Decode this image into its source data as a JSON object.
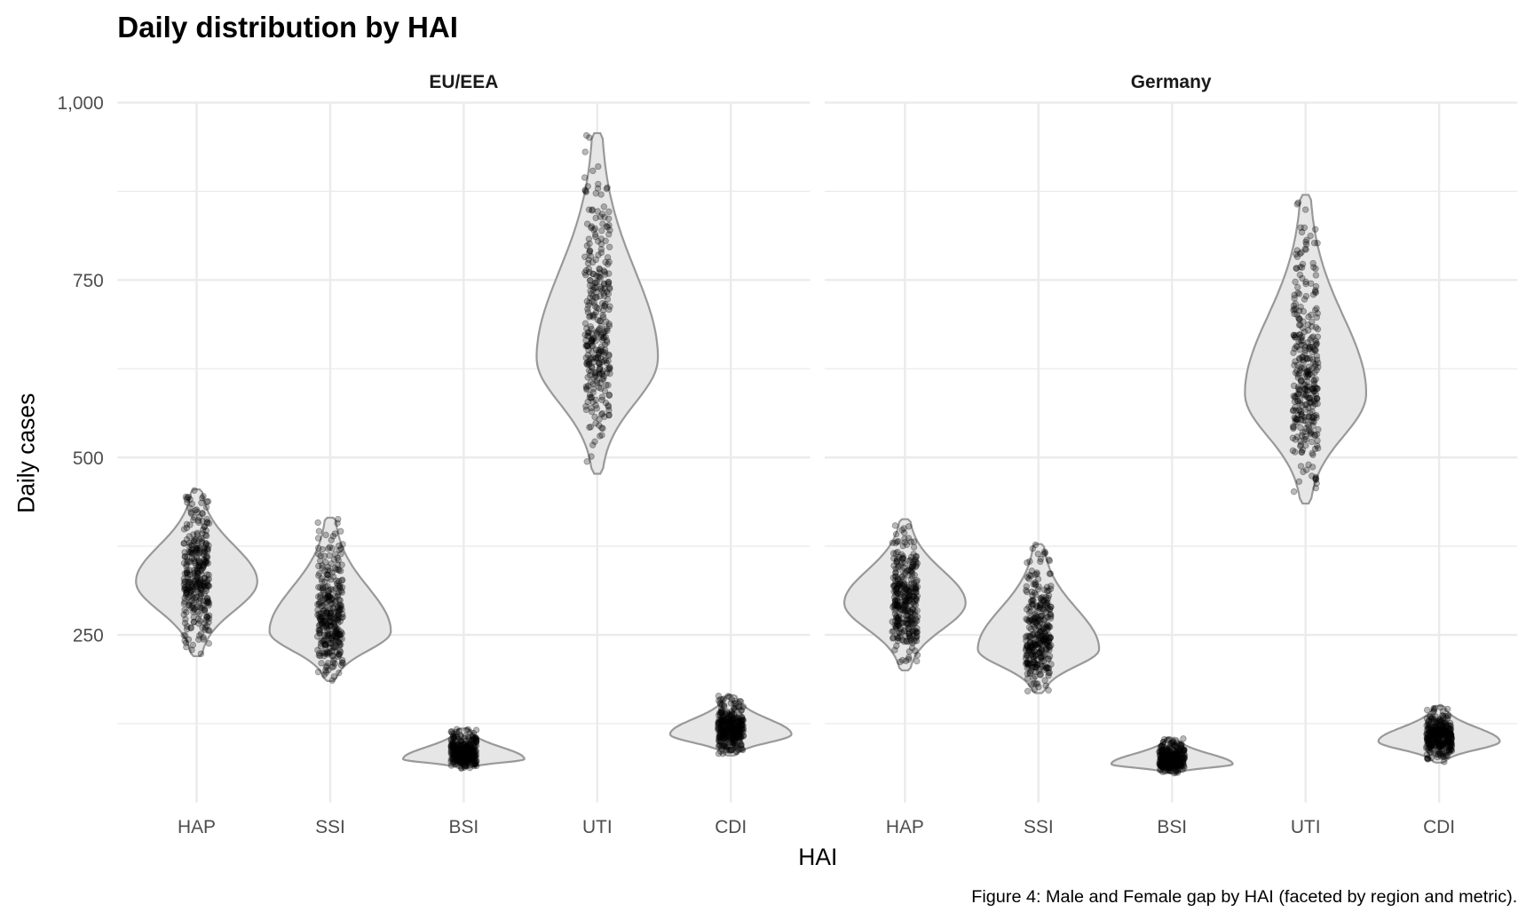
{
  "chart_data": {
    "type": "violin",
    "title": "Daily distribution by HAI",
    "xlabel": "HAI",
    "ylabel": "Daily cases",
    "caption": "Figure 4: Male and Female gap by HAI (faceted by region and metric).",
    "ylim": [
      0,
      1000
    ],
    "yticks": [
      250,
      500,
      750,
      1000
    ],
    "ytick_labels": [
      "250",
      "500",
      "750",
      "1,000"
    ],
    "categories": [
      "HAP",
      "SSI",
      "BSI",
      "UTI",
      "CDI"
    ],
    "grid": true,
    "colors": {
      "violin_fill": "#e6e6e6",
      "violin_stroke": "#999999",
      "points": "#000000",
      "grid": "#ebebeb"
    },
    "facets": [
      {
        "name": "EU/EEA",
        "series": [
          {
            "category": "HAP",
            "min": 220,
            "max": 455,
            "mode": 325
          },
          {
            "category": "SSI",
            "min": 185,
            "max": 415,
            "mode": 255
          },
          {
            "category": "BSI",
            "min": 62,
            "max": 118,
            "mode": 75
          },
          {
            "category": "UTI",
            "min": 477,
            "max": 957,
            "mode": 640
          },
          {
            "category": "CDI",
            "min": 80,
            "max": 165,
            "mode": 110
          }
        ]
      },
      {
        "name": "Germany",
        "series": [
          {
            "category": "HAP",
            "min": 200,
            "max": 413,
            "mode": 295
          },
          {
            "category": "SSI",
            "min": 168,
            "max": 378,
            "mode": 230
          },
          {
            "category": "BSI",
            "min": 55,
            "max": 105,
            "mode": 68
          },
          {
            "category": "UTI",
            "min": 435,
            "max": 870,
            "mode": 590
          },
          {
            "category": "CDI",
            "min": 70,
            "max": 150,
            "mode": 100
          }
        ]
      }
    ]
  }
}
